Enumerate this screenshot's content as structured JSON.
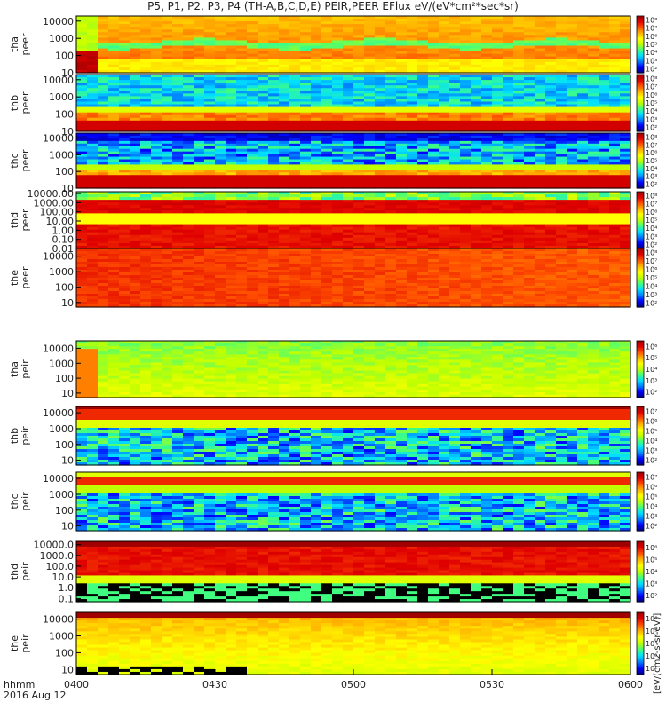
{
  "chart_data": {
    "type": "heatmap",
    "title": "P5, P1, P2, P3, P4 (TH-A,B,C,D,E) PEIR,PEER EFlux eV/(eV*cm²*sec*sr)",
    "x_label_line1": "hhmm",
    "x_label_line2": "2016 Aug 12",
    "x_ticks": [
      "0400",
      "0430",
      "0500",
      "0530",
      "0600"
    ],
    "x_range": [
      "04:00",
      "06:00"
    ],
    "colorbar_units_label": "[eV/(cm2-s-sr-eV)]",
    "panels": [
      {
        "label1": "tha",
        "label2": "peer",
        "y_ticks": [
          "10",
          "100",
          "1000",
          "10000"
        ],
        "colorbar_ticks": [
          "10²",
          "10³",
          "10⁴",
          "10⁵",
          "10⁶",
          "10⁷",
          "10⁸"
        ],
        "y_log_range": [
          1,
          4.3
        ],
        "profile": "tha_peer"
      },
      {
        "label1": "thb",
        "label2": "peer",
        "y_ticks": [
          "10",
          "100",
          "1000",
          "10000"
        ],
        "colorbar_ticks": [
          "10²",
          "10³",
          "10⁴",
          "10⁵",
          "10⁶",
          "10⁷",
          "10⁸"
        ],
        "y_log_range": [
          1,
          4.3
        ],
        "profile": "thb_peer"
      },
      {
        "label1": "thc",
        "label2": "peer",
        "y_ticks": [
          "10",
          "100",
          "1000",
          "10000"
        ],
        "colorbar_ticks": [
          "10²",
          "10³",
          "10⁴",
          "10⁵",
          "10⁶",
          "10⁷",
          "10⁸"
        ],
        "y_log_range": [
          1,
          4.3
        ],
        "profile": "thc_peer"
      },
      {
        "label1": "thd",
        "label2": "peer",
        "y_ticks": [
          "0.01",
          "0.10",
          "1.00",
          "10.00",
          "100.00",
          "1000.00",
          "10000.00"
        ],
        "colorbar_ticks": [
          "10²",
          "10³",
          "10⁴",
          "10⁵",
          "10⁶",
          "10⁷",
          "10⁸"
        ],
        "y_log_range": [
          -2,
          4.2
        ],
        "profile": "thd_peer"
      },
      {
        "label1": "the",
        "label2": "peer",
        "y_ticks": [
          "10",
          "100",
          "1000",
          "10000"
        ],
        "colorbar_ticks": [
          "10²",
          "10³",
          "10⁴",
          "10⁵",
          "10⁶",
          "10⁷",
          "10⁸"
        ],
        "y_log_range": [
          0.7,
          4.5
        ],
        "profile": "the_peer"
      },
      {
        "label1": "tha",
        "label2": "peir",
        "y_ticks": [
          "10",
          "100",
          "1000",
          "10000"
        ],
        "colorbar_ticks": [
          "10²",
          "10³",
          "10⁴",
          "10⁵",
          "10⁶"
        ],
        "y_log_range": [
          0.7,
          4.5
        ],
        "profile": "tha_peir"
      },
      {
        "label1": "thb",
        "label2": "peir",
        "y_ticks": [
          "10",
          "100",
          "1000",
          "10000"
        ],
        "colorbar_ticks": [
          "10²",
          "10³",
          "10⁴",
          "10⁵",
          "10⁶",
          "10⁷"
        ],
        "y_log_range": [
          0.7,
          4.4
        ],
        "profile": "thb_peir"
      },
      {
        "label1": "thc",
        "label2": "peir",
        "y_ticks": [
          "10",
          "100",
          "1000",
          "10000"
        ],
        "colorbar_ticks": [
          "10²",
          "10³",
          "10⁴",
          "10⁵",
          "10⁶",
          "10⁷"
        ],
        "y_log_range": [
          0.7,
          4.4
        ],
        "profile": "thc_peir"
      },
      {
        "label1": "thd",
        "label2": "peir",
        "y_ticks": [
          "0.1",
          "1.0",
          "10.0",
          "100.0",
          "1000.0",
          "10000.0"
        ],
        "colorbar_ticks": [
          "10²",
          "10³",
          "10⁴",
          "10⁵",
          "10⁶"
        ],
        "y_log_range": [
          -1.3,
          4.3
        ],
        "profile": "thd_peir"
      },
      {
        "label1": "the",
        "label2": "peir",
        "y_ticks": [
          "10",
          "100",
          "1000",
          "10000"
        ],
        "colorbar_ticks": [
          "10²",
          "10³",
          "10⁴",
          "10⁵",
          "10⁶"
        ],
        "y_log_range": [
          0.7,
          4.4
        ],
        "profile": "the_peir"
      }
    ],
    "colorscale": [
      "#000080",
      "#0000ff",
      "#0080ff",
      "#00e0ff",
      "#40ff80",
      "#c0ff00",
      "#ffff00",
      "#ffb000",
      "#ff5000",
      "#e00000",
      "#a00000"
    ]
  }
}
